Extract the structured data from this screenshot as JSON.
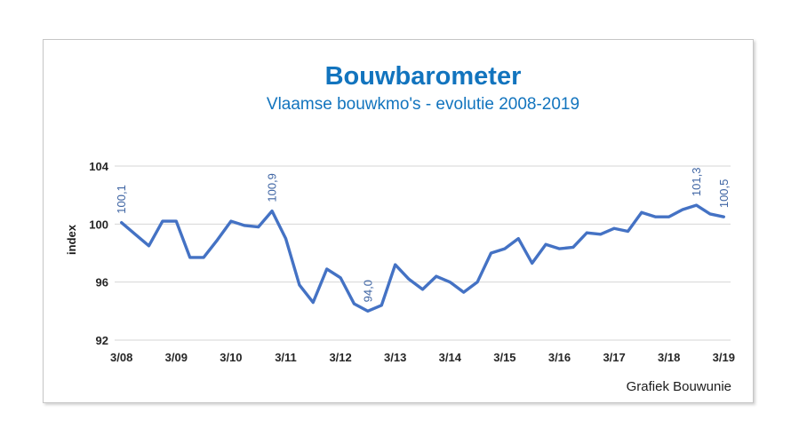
{
  "header": {
    "title": "Bouwbarometer",
    "subtitle": "Vlaamse bouwkmo's - evolutie 2008-2019"
  },
  "credit": {
    "text": "Grafiek Bouwunie"
  },
  "colors": {
    "title_blue": "#1274be",
    "line_blue": "#4472c4",
    "data_label_blue": "#3e64a3",
    "grid_gray": "#d6d6d6",
    "tick_text": "#262626",
    "frame_border": "#c6c6c6"
  },
  "chart_data": {
    "type": "line",
    "title": "Bouwbarometer",
    "subtitle": "Vlaamse bouwkmo's - evolutie 2008-2019",
    "ylabel": "index",
    "ylim": [
      92,
      104
    ],
    "yticks": [
      92,
      96,
      100,
      104
    ],
    "grid": true,
    "legend": "none",
    "points_per_year": 4,
    "x_tick_labels": [
      "3/08",
      "3/09",
      "3/10",
      "3/11",
      "3/12",
      "3/13",
      "3/14",
      "3/15",
      "3/16",
      "3/17",
      "3/18",
      "3/19"
    ],
    "x_tick_every": 4,
    "values": [
      100.1,
      99.3,
      98.5,
      100.2,
      100.2,
      97.7,
      97.7,
      98.9,
      100.2,
      99.9,
      99.8,
      100.9,
      99.0,
      95.8,
      94.6,
      96.9,
      96.3,
      94.5,
      94.0,
      94.4,
      97.2,
      96.2,
      95.5,
      96.4,
      96.0,
      95.3,
      96.0,
      98.0,
      98.3,
      99.0,
      97.3,
      98.6,
      98.3,
      98.4,
      99.4,
      99.3,
      99.7,
      99.5,
      100.8,
      100.5,
      100.5,
      101.0,
      101.3,
      100.7,
      100.5
    ],
    "data_labels": [
      {
        "index": 0,
        "text": "100,1"
      },
      {
        "index": 11,
        "text": "100,9"
      },
      {
        "index": 18,
        "text": "94,0"
      },
      {
        "index": 42,
        "text": "101,3"
      },
      {
        "index": 44,
        "text": "100,5"
      }
    ]
  }
}
